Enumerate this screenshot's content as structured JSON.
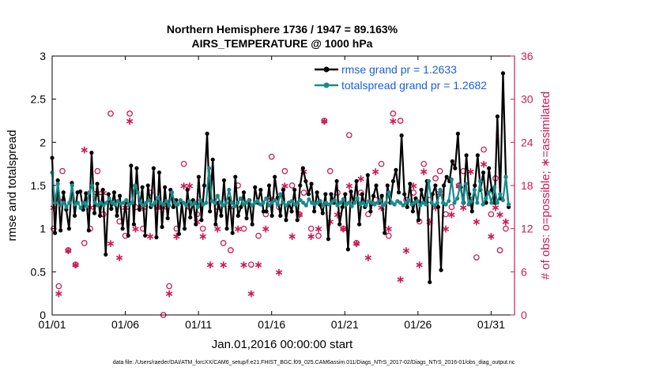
{
  "chart_data": {
    "type": "line",
    "title_line1": "Northern Hemisphere 1736 / 1947 = 89.163%",
    "title_line2": "AIRS_TEMPERATURE @ 1000 hPa",
    "xlabel": "Jan.01,2016 00:00:00 start",
    "ylabel_left": "rmse and totalspread",
    "ylabel_right": "# of obs: o=possible; ∗=assimilated",
    "xlim": [
      0,
      31.6
    ],
    "ylim_left": [
      0,
      3
    ],
    "ylim_right": [
      0,
      36
    ],
    "xticks": [
      0,
      5,
      10,
      15,
      20,
      25,
      30
    ],
    "xtick_labels": [
      "01/01",
      "01/06",
      "01/11",
      "01/16",
      "01/21",
      "01/26",
      "01/31"
    ],
    "yticks_left": [
      "0",
      "0.5",
      "1",
      "1.5",
      "2",
      "2.5",
      "3"
    ],
    "yticks_left_values": [
      0,
      0.5,
      1,
      1.5,
      2,
      2.5,
      3
    ],
    "yticks_right": [
      "0",
      "6",
      "12",
      "18",
      "24",
      "30",
      "36"
    ],
    "yticks_right_values": [
      0,
      6,
      12,
      18,
      24,
      30,
      36
    ],
    "footer": "data file: /Users/raeder/DAI/ATM_forcXX/CAM6_setup/f.e21.FHIST_BGC.f09_025.CAM6assim.011/Diags_NTrS_2017-02/Diags_NTrS_2016-01/obs_diag_output.nc",
    "series": [
      {
        "name": "rmse grand pr = 1.2633",
        "color": "#000000",
        "axis": "left",
        "values": [
          1.82,
          0.95,
          1.56,
          0.98,
          1.42,
          1.22,
          1.0,
          1.53,
          1.15,
          1.42,
          1.43,
          1.22,
          1.41,
          0.98,
          1.88,
          1.18,
          1.52,
          1.15,
          1.45,
          0.7,
          1.4,
          1.23,
          1.42,
          1.15,
          1.38,
          1.0,
          1.3,
          0.92,
          1.73,
          1.05,
          1.7,
          1.22,
          1.48,
          0.92,
          1.5,
          1.25,
          1.7,
          0.9,
          1.65,
          1.02,
          1.48,
          1.12,
          1.45,
          1.25,
          1.33,
          0.94,
          1.3,
          1.0,
          1.45,
          1.13,
          1.33,
          1.05,
          1.6,
          1.1,
          1.5,
          2.1,
          1.2,
          1.8,
          1.05,
          1.3,
          1.15,
          1.56,
          1.0,
          1.35,
          0.95,
          1.6,
          1.15,
          1.25,
          1.42,
          1.12,
          1.33,
          1.05,
          1.48,
          1.3,
          1.45,
          1.2,
          1.2,
          1.5,
          1.15,
          1.6,
          1.36,
          1.15,
          1.45,
          1.1,
          1.3,
          1.2,
          1.45,
          1.1,
          1.5,
          1.7,
          1.55,
          1.4,
          1.52,
          1.2,
          1.42,
          1.28,
          1.18,
          1.4,
          0.88,
          1.4,
          1.3,
          1.55,
          1.05,
          1.25,
          1.4,
          0.76,
          1.43,
          1.3,
          1.55,
          1.05,
          1.4,
          1.25,
          1.62,
          1.2,
          1.38,
          1.5,
          1.3,
          1.38,
          0.95,
          1.5,
          1.3,
          1.55,
          1.68,
          1.42,
          2.08,
          1.4,
          1.25,
          1.52,
          1.2,
          1.35,
          1.1,
          1.45,
          1.3,
          1.55,
          0.38,
          1.4,
          1.5,
          1.25,
          0.52,
          1.5,
          1.6,
          1.55,
          1.78,
          1.7,
          2.1,
          1.48,
          1.3,
          1.85,
          1.4,
          1.2,
          1.5,
          1.85,
          1.45,
          1.65,
          1.3,
          1.7,
          1.45,
          1.3,
          2.3,
          1.35,
          2.8,
          1.6,
          1.25
        ]
      },
      {
        "name": "totalspread grand pr = 1.2682",
        "color": "#1a8a8a",
        "axis": "left",
        "values": [
          1.65,
          1.3,
          1.52,
          1.27,
          1.3,
          1.25,
          1.3,
          1.5,
          1.28,
          1.3,
          1.24,
          1.3,
          1.26,
          1.42,
          1.5,
          1.3,
          1.27,
          1.3,
          1.27,
          1.3,
          1.35,
          1.3,
          1.28,
          1.32,
          1.29,
          1.3,
          1.33,
          1.28,
          1.3,
          1.5,
          1.42,
          1.3,
          1.27,
          1.3,
          1.33,
          1.27,
          1.3,
          1.36,
          1.3,
          1.28,
          1.32,
          1.27,
          1.42,
          1.3,
          1.28,
          1.33,
          1.3,
          1.27,
          1.32,
          1.28,
          1.3,
          1.25,
          1.33,
          1.28,
          1.3,
          1.7,
          1.32,
          1.3,
          1.38,
          1.3,
          1.27,
          1.3,
          1.45,
          1.3,
          1.26,
          1.3,
          1.35,
          1.28,
          1.3,
          1.33,
          1.27,
          1.3,
          1.32,
          1.28,
          1.3,
          1.35,
          1.27,
          1.3,
          1.33,
          1.28,
          1.4,
          1.3,
          1.27,
          1.3,
          1.32,
          1.28,
          1.3,
          1.33,
          1.3,
          1.27,
          1.34,
          1.3,
          1.28,
          1.3,
          1.32,
          1.27,
          1.3,
          1.28,
          1.3,
          1.33,
          1.27,
          1.3,
          1.34,
          1.28,
          1.3,
          1.26,
          1.3,
          1.35,
          1.28,
          1.3,
          1.27,
          1.32,
          1.3,
          1.28,
          1.3,
          1.33,
          1.27,
          1.3,
          1.42,
          1.3,
          1.28,
          1.32,
          1.3,
          1.27,
          1.3,
          1.33,
          1.28,
          1.3,
          1.32,
          1.27,
          1.3,
          1.28,
          1.55,
          1.3,
          1.27,
          1.3,
          1.45,
          1.3,
          1.28,
          1.32,
          1.57,
          1.3,
          1.35,
          1.5,
          1.3,
          1.52,
          1.28,
          1.32,
          1.45,
          1.3,
          1.55,
          1.28,
          1.35,
          1.42,
          1.3,
          1.48,
          1.3,
          1.4,
          1.33,
          1.6,
          1.28
        ]
      }
    ],
    "obs_possible": [
      [
        0.1,
        12
      ],
      [
        0.45,
        4
      ],
      [
        0.7,
        20
      ],
      [
        1.1,
        9
      ],
      [
        1.6,
        7
      ],
      [
        2.2,
        10
      ],
      [
        2.6,
        12
      ],
      [
        3.1,
        20
      ],
      [
        3.5,
        14
      ],
      [
        4.0,
        28
      ],
      [
        4.6,
        13
      ],
      [
        5.0,
        11
      ],
      [
        5.3,
        28
      ],
      [
        5.7,
        15
      ],
      [
        6.2,
        12
      ],
      [
        6.7,
        17
      ],
      [
        7.2,
        15
      ],
      [
        7.6,
        0
      ],
      [
        8.0,
        4
      ],
      [
        8.5,
        12
      ],
      [
        9.0,
        21
      ],
      [
        9.4,
        15
      ],
      [
        9.9,
        14
      ],
      [
        10.3,
        12
      ],
      [
        10.8,
        19
      ],
      [
        11.3,
        15
      ],
      [
        11.7,
        10
      ],
      [
        12.2,
        9
      ],
      [
        12.7,
        18
      ],
      [
        13.1,
        12
      ],
      [
        13.6,
        7
      ],
      [
        14.1,
        11
      ],
      [
        14.6,
        14
      ],
      [
        15.0,
        22
      ],
      [
        15.5,
        15
      ],
      [
        15.9,
        20
      ],
      [
        16.4,
        18
      ],
      [
        16.9,
        14
      ],
      [
        17.2,
        17
      ],
      [
        17.7,
        12
      ],
      [
        18.2,
        11
      ],
      [
        18.6,
        27
      ],
      [
        19.0,
        20
      ],
      [
        19.5,
        17
      ],
      [
        19.9,
        12
      ],
      [
        20.3,
        25
      ],
      [
        20.8,
        10
      ],
      [
        21.1,
        17
      ],
      [
        21.6,
        14
      ],
      [
        22.1,
        16
      ],
      [
        22.5,
        21
      ],
      [
        23.0,
        11
      ],
      [
        23.3,
        28
      ],
      [
        23.8,
        27
      ],
      [
        24.2,
        16
      ],
      [
        24.7,
        17
      ],
      [
        25.1,
        13
      ],
      [
        25.4,
        21
      ],
      [
        25.8,
        16
      ],
      [
        26.2,
        19
      ],
      [
        26.5,
        20
      ],
      [
        26.9,
        14
      ],
      [
        27.3,
        15
      ],
      [
        27.8,
        18
      ],
      [
        28.1,
        20
      ],
      [
        28.6,
        16
      ],
      [
        29.0,
        8
      ],
      [
        29.5,
        23
      ],
      [
        30.0,
        14
      ],
      [
        30.3,
        19
      ],
      [
        30.6,
        9
      ],
      [
        31.0,
        12
      ]
    ],
    "obs_assimilated": [
      [
        0.1,
        15
      ],
      [
        0.45,
        3
      ],
      [
        0.7,
        16
      ],
      [
        1.1,
        9
      ],
      [
        1.6,
        7
      ],
      [
        2.2,
        23
      ],
      [
        2.6,
        15
      ],
      [
        3.1,
        17
      ],
      [
        3.5,
        17
      ],
      [
        4.0,
        10
      ],
      [
        4.6,
        8
      ],
      [
        5.0,
        15
      ],
      [
        5.3,
        27
      ],
      [
        5.7,
        12
      ],
      [
        6.2,
        15
      ],
      [
        6.7,
        11
      ],
      [
        7.2,
        15
      ],
      [
        7.6,
        15
      ],
      [
        8.0,
        3
      ],
      [
        8.5,
        11
      ],
      [
        9.0,
        18
      ],
      [
        9.4,
        18
      ],
      [
        9.9,
        13
      ],
      [
        10.3,
        11
      ],
      [
        10.8,
        7
      ],
      [
        11.3,
        12
      ],
      [
        11.7,
        7
      ],
      [
        12.2,
        15
      ],
      [
        12.7,
        12
      ],
      [
        13.1,
        7
      ],
      [
        13.6,
        3
      ],
      [
        14.1,
        7
      ],
      [
        14.6,
        12
      ],
      [
        15.0,
        16
      ],
      [
        15.5,
        6
      ],
      [
        15.9,
        18
      ],
      [
        16.4,
        11
      ],
      [
        16.9,
        14
      ],
      [
        17.2,
        20
      ],
      [
        17.7,
        11
      ],
      [
        18.2,
        12
      ],
      [
        18.6,
        27
      ],
      [
        19.0,
        13
      ],
      [
        19.5,
        14
      ],
      [
        19.9,
        12
      ],
      [
        20.3,
        18
      ],
      [
        20.8,
        10
      ],
      [
        21.1,
        19
      ],
      [
        21.6,
        8
      ],
      [
        22.1,
        20
      ],
      [
        22.5,
        15
      ],
      [
        23.0,
        12
      ],
      [
        23.3,
        27
      ],
      [
        23.8,
        5
      ],
      [
        24.2,
        9
      ],
      [
        24.7,
        18
      ],
      [
        25.1,
        7
      ],
      [
        25.4,
        20
      ],
      [
        25.8,
        13
      ],
      [
        26.2,
        15
      ],
      [
        26.5,
        17
      ],
      [
        26.9,
        12
      ],
      [
        27.3,
        14
      ],
      [
        27.8,
        18
      ],
      [
        28.1,
        15
      ],
      [
        28.6,
        20
      ],
      [
        29.0,
        13
      ],
      [
        29.5,
        21
      ],
      [
        30.0,
        11
      ],
      [
        30.3,
        15
      ],
      [
        30.6,
        14
      ],
      [
        31.0,
        13
      ]
    ],
    "obs_colors": {
      "marker": "#cc1a55"
    },
    "legend_position": "top-right"
  }
}
